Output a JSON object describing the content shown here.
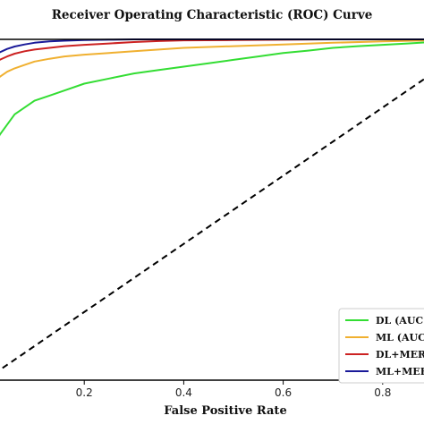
{
  "chart_data": {
    "type": "line",
    "title": "Receiver Operating Characteristic (ROC) Curve",
    "xlabel": "False Positive Rate",
    "ylabel": "",
    "xlim": [
      0.0,
      1.0
    ],
    "ylim": [
      0.0,
      1.0
    ],
    "x_ticks": [
      0.2,
      0.4,
      0.6,
      0.8
    ],
    "x_tick_labels": [
      "0.2",
      "0.4",
      "0.6",
      "0.8"
    ],
    "grid": false,
    "legend_position": "bottom-right",
    "diagonal": {
      "x": [
        0.0,
        1.0
      ],
      "y": [
        0.0,
        1.0
      ],
      "style": "dashed",
      "color": "#000000"
    },
    "series": [
      {
        "name": "DL (AUC=",
        "color": "#33dd33",
        "x": [
          0.0,
          0.002,
          0.006,
          0.012,
          0.02,
          0.03,
          0.045,
          0.06,
          0.08,
          0.1,
          0.13,
          0.16,
          0.2,
          0.25,
          0.3,
          0.35,
          0.4,
          0.45,
          0.5,
          0.55,
          0.6,
          0.65,
          0.7,
          0.75,
          0.8,
          0.85,
          0.9,
          0.95,
          1.0
        ],
        "y": [
          0.56,
          0.6,
          0.63,
          0.66,
          0.69,
          0.72,
          0.75,
          0.78,
          0.8,
          0.82,
          0.835,
          0.85,
          0.87,
          0.885,
          0.9,
          0.91,
          0.92,
          0.93,
          0.94,
          0.95,
          0.96,
          0.967,
          0.975,
          0.98,
          0.984,
          0.988,
          0.992,
          0.996,
          1.0
        ]
      },
      {
        "name": "ML (AUC=",
        "color": "#f0b030",
        "x": [
          0.0,
          0.002,
          0.006,
          0.012,
          0.02,
          0.03,
          0.045,
          0.06,
          0.08,
          0.1,
          0.13,
          0.16,
          0.2,
          0.25,
          0.3,
          0.35,
          0.4,
          0.5,
          0.6,
          0.7,
          0.8,
          0.9,
          1.0
        ],
        "y": [
          0.77,
          0.8,
          0.83,
          0.855,
          0.875,
          0.89,
          0.905,
          0.915,
          0.925,
          0.935,
          0.943,
          0.95,
          0.955,
          0.96,
          0.965,
          0.97,
          0.975,
          0.98,
          0.985,
          0.99,
          0.994,
          0.997,
          1.0
        ]
      },
      {
        "name": "DL+MERG",
        "color": "#cc2222",
        "x": [
          0.0,
          0.002,
          0.006,
          0.012,
          0.02,
          0.03,
          0.045,
          0.06,
          0.08,
          0.1,
          0.13,
          0.16,
          0.2,
          0.25,
          0.3,
          0.35,
          0.4,
          0.5,
          0.6,
          0.7,
          0.8,
          0.9,
          1.0
        ],
        "y": [
          0.81,
          0.85,
          0.88,
          0.905,
          0.925,
          0.94,
          0.95,
          0.958,
          0.965,
          0.97,
          0.975,
          0.98,
          0.984,
          0.988,
          0.992,
          0.995,
          0.997,
          0.998,
          0.999,
          1.0,
          1.0,
          1.0,
          1.0
        ]
      },
      {
        "name": "ML+MER",
        "color": "#1a1a99",
        "x": [
          0.0,
          0.002,
          0.006,
          0.012,
          0.02,
          0.03,
          0.045,
          0.06,
          0.08,
          0.1,
          0.13,
          0.16,
          0.2,
          0.25,
          0.3,
          0.35,
          0.4,
          0.5,
          0.6,
          0.7,
          0.8,
          0.9,
          1.0
        ],
        "y": [
          0.86,
          0.89,
          0.915,
          0.935,
          0.95,
          0.962,
          0.972,
          0.979,
          0.985,
          0.99,
          0.994,
          0.996,
          0.998,
          0.999,
          1.0,
          1.0,
          1.0,
          1.0,
          1.0,
          1.0,
          1.0,
          1.0,
          1.0
        ]
      }
    ]
  }
}
